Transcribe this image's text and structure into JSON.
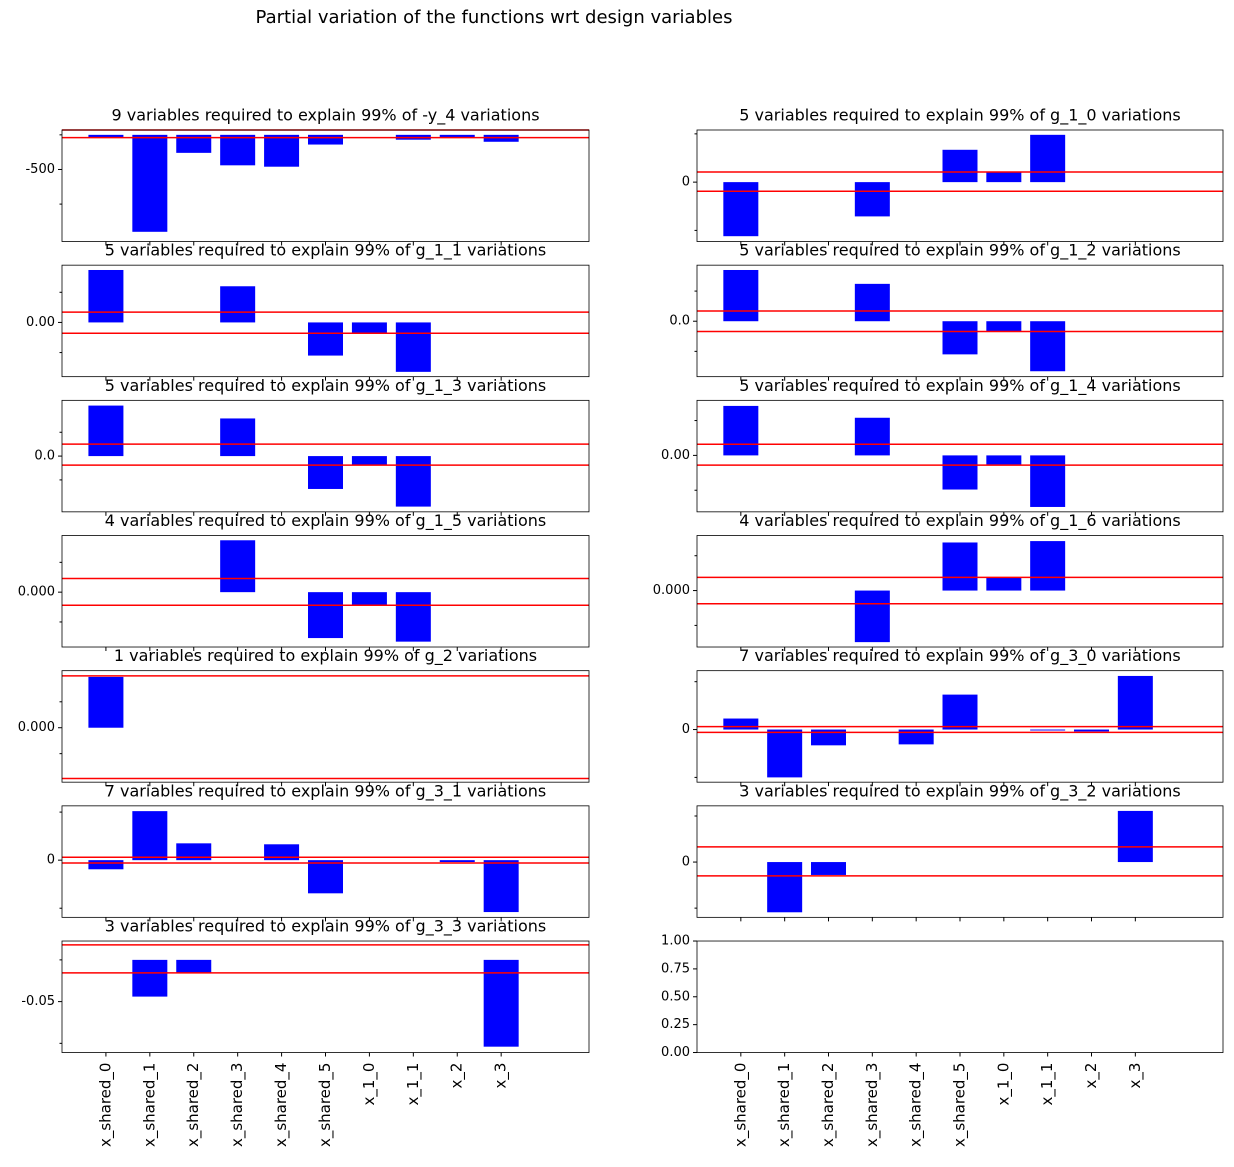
{
  "title": "Partial variation of the functions wrt design variables",
  "chart_data": [
    {
      "type": "bar",
      "title": "9 variables required to explain 99% of -y_4 variations",
      "color": "blue",
      "values": [
        -40,
        -1400,
        -260,
        -440,
        -460,
        -140,
        0,
        -70,
        -40,
        -100
      ],
      "hlines": [
        70,
        -40
      ],
      "hline_color": "red",
      "ylim": [
        70,
        -1540
      ],
      "yticks": [
        -500
      ],
      "yminorticks": [
        0,
        -1000
      ]
    },
    {
      "type": "bar",
      "title": "5 variables required to explain 99% of g_1_0 variations",
      "color": "blue",
      "values": [
        -1.12,
        0,
        0,
        -0.71,
        0,
        0.67,
        0.2,
        0.98,
        0,
        0
      ],
      "hlines": [
        0.21,
        -0.19
      ],
      "hline_color": "red",
      "ylim": [
        1.08,
        -1.23
      ],
      "yticks": [
        0
      ],
      "yminorticks": [
        1,
        -1
      ]
    },
    {
      "type": "bar",
      "title": "5 variables required to explain 99% of g_1_1 variations",
      "color": "blue",
      "values": [
        0.087,
        0,
        0,
        0.06,
        0,
        -0.055,
        -0.017,
        -0.082,
        0,
        0
      ],
      "hlines": [
        0.017,
        -0.018
      ],
      "hline_color": "red",
      "ylim": [
        0.095,
        -0.09
      ],
      "yticks": [
        {
          "value": 0,
          "label": "0.00"
        }
      ],
      "yminorticks": [
        0.05,
        -0.05
      ]
    },
    {
      "type": "bar",
      "title": "5 variables required to explain 99% of g_1_2 variations",
      "color": "blue",
      "values": [
        0.85,
        0,
        0,
        0.62,
        0,
        -0.55,
        -0.17,
        -0.83,
        0,
        0
      ],
      "hlines": [
        0.17,
        -0.17
      ],
      "hline_color": "red",
      "ylim": [
        0.93,
        -0.92
      ],
      "yticks": [
        {
          "value": 0,
          "label": "0.0"
        }
      ],
      "yminorticks": [
        0.5,
        -0.5
      ]
    },
    {
      "type": "bar",
      "title": "5 variables required to explain 99% of g_1_3 variations",
      "color": "blue",
      "values": [
        1.06,
        0,
        0,
        0.79,
        0,
        -0.69,
        -0.19,
        -1.06,
        0,
        0
      ],
      "hlines": [
        0.25,
        -0.19
      ],
      "hline_color": "red",
      "ylim": [
        1.17,
        -1.17
      ],
      "yticks": [
        {
          "value": 0,
          "label": "0.0"
        }
      ],
      "yminorticks": [
        0.5,
        -0.5
      ]
    },
    {
      "type": "bar",
      "title": "5 variables required to explain 99% of g_1_4 variations",
      "color": "blue",
      "values": [
        0.071,
        0,
        0,
        0.054,
        0,
        -0.049,
        -0.013,
        -0.074,
        0,
        0
      ],
      "hlines": [
        0.016,
        -0.014
      ],
      "hline_color": "red",
      "ylim": [
        0.079,
        -0.081
      ],
      "yticks": [
        {
          "value": 0,
          "label": "0.00"
        }
      ],
      "yminorticks": [
        0.05,
        -0.05
      ]
    },
    {
      "type": "bar",
      "title": "4 variables required to explain 99% of g_1_5 variations",
      "color": "blue",
      "values": [
        0,
        0,
        0,
        0.0087,
        0,
        -0.0077,
        -0.0022,
        -0.0083,
        0,
        0
      ],
      "hlines": [
        0.0023,
        -0.0022
      ],
      "hline_color": "red",
      "ylim": [
        0.0095,
        -0.0092
      ],
      "yticks": [
        {
          "value": 0,
          "label": "0.000"
        }
      ],
      "yminorticks": [
        0.005,
        -0.005
      ]
    },
    {
      "type": "bar",
      "title": "4 variables required to explain 99% of g_1_6 variations",
      "color": "blue",
      "values": [
        0,
        0,
        0,
        -0.0074,
        0,
        0.0069,
        0.0019,
        0.0071,
        0,
        0
      ],
      "hlines": [
        0.0019,
        -0.0019
      ],
      "hline_color": "red",
      "ylim": [
        0.0079,
        -0.0081
      ],
      "yticks": [
        {
          "value": 0,
          "label": "0.000"
        }
      ],
      "yminorticks": [
        0.005,
        -0.005
      ]
    },
    {
      "type": "bar",
      "title": "1 variables required to explain 99% of g_2 variations",
      "color": "blue",
      "values": [
        0.00196,
        0,
        0,
        0,
        0,
        0,
        0,
        0,
        0,
        0
      ],
      "hlines": [
        0.002,
        -0.00196
      ],
      "hline_color": "red",
      "ylim": [
        0.0022,
        -0.0021
      ],
      "yticks": [
        {
          "value": 0,
          "label": "0.000"
        }
      ],
      "yminorticks": [
        0.001,
        -0.001
      ]
    },
    {
      "type": "bar",
      "title": "7 variables required to explain 99% of g_3_0 variations",
      "color": "blue",
      "values": [
        0.23,
        -1.0,
        -0.33,
        0,
        -0.31,
        0.73,
        0,
        -0.02,
        -0.04,
        1.12
      ],
      "hlines": [
        0.06,
        -0.06
      ],
      "hline_color": "red",
      "ylim": [
        1.23,
        -1.1
      ],
      "yticks": [
        0
      ],
      "yminorticks": [
        1,
        -1
      ]
    },
    {
      "type": "bar",
      "title": "7 variables required to explain 99% of g_3_1 variations",
      "color": "blue",
      "values": [
        -0.19,
        1.02,
        0.35,
        0,
        0.33,
        -0.69,
        0,
        0,
        -0.04,
        -1.08
      ],
      "hlines": [
        0.06,
        -0.06
      ],
      "hline_color": "red",
      "ylim": [
        1.13,
        -1.19
      ],
      "yticks": [
        0
      ],
      "yminorticks": [
        1,
        -1
      ]
    },
    {
      "type": "bar",
      "title": "3 variables required to explain 99% of g_3_2 variations",
      "color": "blue",
      "values": [
        0,
        -1.09,
        -0.28,
        0,
        0,
        0,
        0,
        0,
        0,
        1.11
      ],
      "hlines": [
        0.33,
        -0.3
      ],
      "hline_color": "red",
      "ylim": [
        1.22,
        -1.2
      ],
      "yticks": [
        0
      ],
      "yminorticks": [
        1,
        -1
      ]
    },
    {
      "type": "bar",
      "title": "3 variables required to explain 99% of g_3_3 variations",
      "color": "blue",
      "categories": [
        "x_shared_0",
        "x_shared_1",
        "x_shared_2",
        "x_shared_3",
        "x_shared_4",
        "x_shared_5",
        "x_1_0",
        "x_1_1",
        "x_2",
        "x_3"
      ],
      "values": [
        0,
        -0.044,
        -0.0155,
        0,
        0,
        0,
        0,
        0,
        0,
        -0.104
      ],
      "hlines": [
        0.018,
        -0.0155
      ],
      "hline_color": "red",
      "ylim": [
        0.0226,
        -0.111
      ],
      "yticks": [
        -0.05
      ],
      "yminorticks": [
        0,
        -0.1
      ]
    },
    {
      "type": "empty",
      "categories": [
        "x_shared_0",
        "x_shared_1",
        "x_shared_2",
        "x_shared_3",
        "x_shared_4",
        "x_shared_5",
        "x_1_0",
        "x_1_1",
        "x_2",
        "x_3"
      ],
      "ylim": [
        1,
        0
      ],
      "yticks": [
        {
          "value": 0,
          "label": "0.00"
        },
        {
          "value": 0.25,
          "label": "0.25"
        },
        {
          "value": 0.5,
          "label": "0.50"
        },
        {
          "value": 0.75,
          "label": "0.75"
        },
        {
          "value": 1,
          "label": "1.00"
        }
      ]
    }
  ]
}
